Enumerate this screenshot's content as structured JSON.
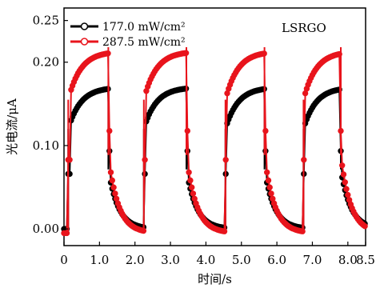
{
  "chart_data": {
    "type": "line",
    "annotation": "LSRGO",
    "xlabel": "时间/s",
    "ylabel": "光电流/μA",
    "xlim": [
      0,
      8.5
    ],
    "ylim": [
      -0.02,
      0.265
    ],
    "x_ticks": [
      0,
      1.0,
      2.0,
      3.0,
      4.0,
      5.0,
      6.0,
      7.0,
      8.0,
      8.5
    ],
    "x_tick_labels": [
      "0",
      "1.0",
      "2.0",
      "3.0",
      "4.0",
      "5.0",
      "6.0",
      "7.0",
      "8.0",
      "8.5"
    ],
    "y_ticks": [
      0.0,
      0.1,
      0.2,
      0.25
    ],
    "y_tick_labels": [
      "0.00",
      "0.10",
      "0.20",
      "0.25"
    ],
    "grid": false,
    "legend_position": "top-left",
    "cycles": [
      {
        "on": 0.12,
        "off": 1.25
      },
      {
        "on": 2.25,
        "off": 3.45
      },
      {
        "on": 4.55,
        "off": 5.65
      },
      {
        "on": 6.75,
        "off": 7.8
      }
    ],
    "series": [
      {
        "name": "177.0 mW/cm²",
        "color": "#000000",
        "baseline": 0.0,
        "plateau_start": 0.12,
        "plateau_end": 0.17
      },
      {
        "name": "287.5 mW/cm²",
        "color": "#e8141c",
        "baseline": -0.005,
        "plateau_start": 0.16,
        "plateau_end": 0.218
      }
    ]
  },
  "legend": {
    "items": [
      {
        "label": "177.0 mW/cm²",
        "color": "#000000"
      },
      {
        "label": "287.5 mW/cm²",
        "color": "#e8141c"
      }
    ]
  }
}
